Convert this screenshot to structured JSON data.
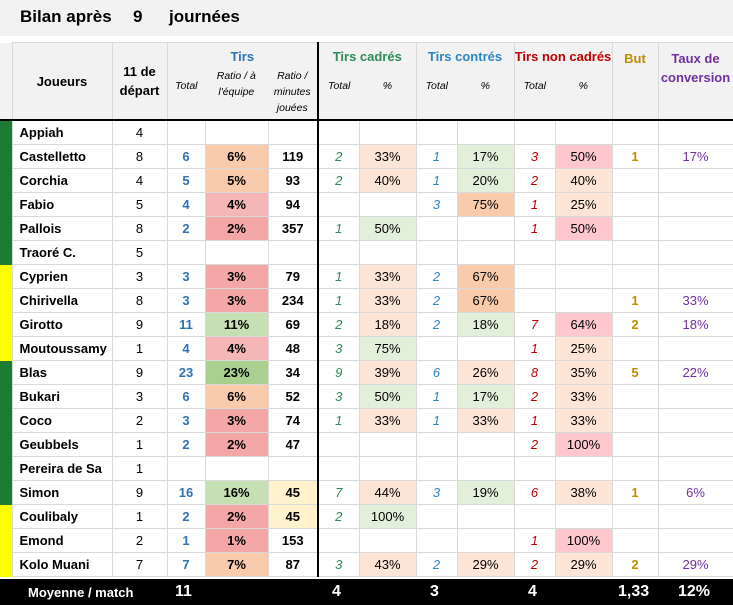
{
  "title": {
    "prefix": "Bilan après",
    "count": "9",
    "suffix": "journées"
  },
  "headers": {
    "players": "Joueurs",
    "starts": "11 de départ",
    "shots": "Tirs",
    "on_target": "Tirs cadrés",
    "blocked": "Tirs contrés",
    "off_target": "Tirs non cadrés",
    "goals": "But",
    "conversion": "Taux de conversion",
    "sub_total": "Total",
    "sub_ratio_team": "Ratio / à l'équipe",
    "sub_ratio_min": "Ratio / minutes jouées",
    "sub_pct": "%"
  },
  "colors": {
    "dark_green": "#1e7b34",
    "yellow": "#ffff00",
    "pale_red": "#ff9a9a",
    "pale_green": "#c6e0b4",
    "pale_orange": "#f8cbad",
    "pale_yellow": "#fff2cc"
  },
  "rows": [
    {
      "name": "Appiah",
      "starts": "4",
      "shots": "",
      "ratio": "",
      "ratio_bg": "",
      "min": "",
      "on_t": "",
      "on_p": "",
      "on_bg": "",
      "bl_t": "",
      "bl_p": "",
      "bl_bg": "",
      "off_t": "",
      "off_p": "",
      "off_bg": "",
      "goals": "",
      "conv": "",
      "bar": "dark_green"
    },
    {
      "name": "Castelletto",
      "starts": "8",
      "shots": "6",
      "ratio": "6%",
      "ratio_bg": "#f8cbad",
      "min": "119",
      "on_t": "2",
      "on_p": "33%",
      "on_bg": "#fce4d6",
      "bl_t": "1",
      "bl_p": "17%",
      "bl_bg": "#e2efda",
      "off_t": "3",
      "off_p": "50%",
      "off_bg": "#ffc7ce",
      "goals": "1",
      "conv": "17%",
      "bar": "dark_green"
    },
    {
      "name": "Corchia",
      "starts": "4",
      "shots": "5",
      "ratio": "5%",
      "ratio_bg": "#f8cbad",
      "min": "93",
      "on_t": "2",
      "on_p": "40%",
      "on_bg": "#fce4d6",
      "bl_t": "1",
      "bl_p": "20%",
      "bl_bg": "#e2efda",
      "off_t": "2",
      "off_p": "40%",
      "off_bg": "#fce4d6",
      "goals": "",
      "conv": "",
      "bar": "dark_green"
    },
    {
      "name": "Fabio",
      "starts": "5",
      "shots": "4",
      "ratio": "4%",
      "ratio_bg": "#f4b6b6",
      "min": "94",
      "on_t": "",
      "on_p": "",
      "on_bg": "",
      "bl_t": "3",
      "bl_p": "75%",
      "bl_bg": "#f8cbad",
      "off_t": "1",
      "off_p": "25%",
      "off_bg": "#fce4d6",
      "goals": "",
      "conv": "",
      "bar": "dark_green"
    },
    {
      "name": "Pallois",
      "starts": "8",
      "shots": "2",
      "ratio": "2%",
      "ratio_bg": "#f4a7a7",
      "min": "357",
      "on_t": "1",
      "on_p": "50%",
      "on_bg": "#e2efda",
      "bl_t": "",
      "bl_p": "",
      "bl_bg": "",
      "off_t": "1",
      "off_p": "50%",
      "off_bg": "#ffc7ce",
      "goals": "",
      "conv": "",
      "bar": "dark_green"
    },
    {
      "name": "Traoré C.",
      "starts": "5",
      "shots": "",
      "ratio": "",
      "ratio_bg": "",
      "min": "",
      "on_t": "",
      "on_p": "",
      "on_bg": "",
      "bl_t": "",
      "bl_p": "",
      "bl_bg": "",
      "off_t": "",
      "off_p": "",
      "off_bg": "",
      "goals": "",
      "conv": "",
      "bar": "dark_green"
    },
    {
      "name": "Cyprien",
      "starts": "3",
      "shots": "3",
      "ratio": "3%",
      "ratio_bg": "#f4a7a7",
      "min": "79",
      "on_t": "1",
      "on_p": "33%",
      "on_bg": "#fce4d6",
      "bl_t": "2",
      "bl_p": "67%",
      "bl_bg": "#f8cbad",
      "off_t": "",
      "off_p": "",
      "off_bg": "",
      "goals": "",
      "conv": "",
      "bar": "yellow"
    },
    {
      "name": "Chirivella",
      "starts": "8",
      "shots": "3",
      "ratio": "3%",
      "ratio_bg": "#f4a7a7",
      "min": "234",
      "on_t": "1",
      "on_p": "33%",
      "on_bg": "#fce4d6",
      "bl_t": "2",
      "bl_p": "67%",
      "bl_bg": "#f8cbad",
      "off_t": "",
      "off_p": "",
      "off_bg": "",
      "goals": "1",
      "conv": "33%",
      "bar": "yellow"
    },
    {
      "name": "Girotto",
      "starts": "9",
      "shots": "11",
      "ratio": "11%",
      "ratio_bg": "#c6e0b4",
      "min": "69",
      "on_t": "2",
      "on_p": "18%",
      "on_bg": "#fce4d6",
      "bl_t": "2",
      "bl_p": "18%",
      "bl_bg": "#e2efda",
      "off_t": "7",
      "off_p": "64%",
      "off_bg": "#ffc7ce",
      "goals": "2",
      "conv": "18%",
      "bar": "yellow"
    },
    {
      "name": "Moutoussamy",
      "starts": "1",
      "shots": "4",
      "ratio": "4%",
      "ratio_bg": "#f4b6b6",
      "min": "48",
      "on_t": "3",
      "on_p": "75%",
      "on_bg": "#e2efda",
      "bl_t": "",
      "bl_p": "",
      "bl_bg": "",
      "off_t": "1",
      "off_p": "25%",
      "off_bg": "#fce4d6",
      "goals": "",
      "conv": "",
      "bar": "yellow"
    },
    {
      "name": "Blas",
      "starts": "9",
      "shots": "23",
      "ratio": "23%",
      "ratio_bg": "#a9d08e",
      "min": "34",
      "on_t": "9",
      "on_p": "39%",
      "on_bg": "#fce4d6",
      "bl_t": "6",
      "bl_p": "26%",
      "bl_bg": "#fce4d6",
      "off_t": "8",
      "off_p": "35%",
      "off_bg": "#fce4d6",
      "goals": "5",
      "conv": "22%",
      "bar": "dark_green"
    },
    {
      "name": "Bukari",
      "starts": "3",
      "shots": "6",
      "ratio": "6%",
      "ratio_bg": "#f8cbad",
      "min": "52",
      "on_t": "3",
      "on_p": "50%",
      "on_bg": "#e2efda",
      "bl_t": "1",
      "bl_p": "17%",
      "bl_bg": "#e2efda",
      "off_t": "2",
      "off_p": "33%",
      "off_bg": "#fce4d6",
      "goals": "",
      "conv": "",
      "bar": "dark_green"
    },
    {
      "name": "Coco",
      "starts": "2",
      "shots": "3",
      "ratio": "3%",
      "ratio_bg": "#f4a7a7",
      "min": "74",
      "on_t": "1",
      "on_p": "33%",
      "on_bg": "#fce4d6",
      "bl_t": "1",
      "bl_p": "33%",
      "bl_bg": "#fce4d6",
      "off_t": "1",
      "off_p": "33%",
      "off_bg": "#fce4d6",
      "goals": "",
      "conv": "",
      "bar": "dark_green"
    },
    {
      "name": "Geubbels",
      "starts": "1",
      "shots": "2",
      "ratio": "2%",
      "ratio_bg": "#f4a7a7",
      "min": "47",
      "on_t": "",
      "on_p": "",
      "on_bg": "",
      "bl_t": "",
      "bl_p": "",
      "bl_bg": "",
      "off_t": "2",
      "off_p": "100%",
      "off_bg": "#ffc7ce",
      "goals": "",
      "conv": "",
      "bar": "dark_green"
    },
    {
      "name": "Pereira de Sa",
      "starts": "1",
      "shots": "",
      "ratio": "",
      "ratio_bg": "",
      "min": "",
      "on_t": "",
      "on_p": "",
      "on_bg": "",
      "bl_t": "",
      "bl_p": "",
      "bl_bg": "",
      "off_t": "",
      "off_p": "",
      "off_bg": "",
      "goals": "",
      "conv": "",
      "bar": "dark_green"
    },
    {
      "name": "Simon",
      "starts": "9",
      "shots": "16",
      "ratio": "16%",
      "ratio_bg": "#c6e0b4",
      "min": "45",
      "min_bg": "#fff2cc",
      "on_t": "7",
      "on_p": "44%",
      "on_bg": "#fce4d6",
      "bl_t": "3",
      "bl_p": "19%",
      "bl_bg": "#e2efda",
      "off_t": "6",
      "off_p": "38%",
      "off_bg": "#fce4d6",
      "goals": "1",
      "conv": "6%",
      "bar": "dark_green"
    },
    {
      "name": "Coulibaly",
      "starts": "1",
      "shots": "2",
      "ratio": "2%",
      "ratio_bg": "#f4a7a7",
      "min": "45",
      "min_bg": "#fff2cc",
      "on_t": "2",
      "on_p": "100%",
      "on_bg": "#e2efda",
      "bl_t": "",
      "bl_p": "",
      "bl_bg": "",
      "off_t": "",
      "off_p": "",
      "off_bg": "",
      "goals": "",
      "conv": "",
      "bar": "yellow"
    },
    {
      "name": "Emond",
      "starts": "2",
      "shots": "1",
      "ratio": "1%",
      "ratio_bg": "#f4a7a7",
      "min": "153",
      "on_t": "",
      "on_p": "",
      "on_bg": "",
      "bl_t": "",
      "bl_p": "",
      "bl_bg": "",
      "off_t": "1",
      "off_p": "100%",
      "off_bg": "#ffc7ce",
      "goals": "",
      "conv": "",
      "bar": "yellow"
    },
    {
      "name": "Kolo Muani",
      "starts": "7",
      "shots": "7",
      "ratio": "7%",
      "ratio_bg": "#f8cbad",
      "min": "87",
      "on_t": "3",
      "on_p": "43%",
      "on_bg": "#fce4d6",
      "bl_t": "2",
      "bl_p": "29%",
      "bl_bg": "#fce4d6",
      "off_t": "2",
      "off_p": "29%",
      "off_bg": "#fce4d6",
      "goals": "2",
      "conv": "29%",
      "bar": "yellow"
    }
  ],
  "footer": {
    "label": "Moyenne / match",
    "shots": "11",
    "on_target": "4",
    "blocked": "3",
    "off_target": "4",
    "goals": "1,33",
    "conversion": "12%"
  }
}
